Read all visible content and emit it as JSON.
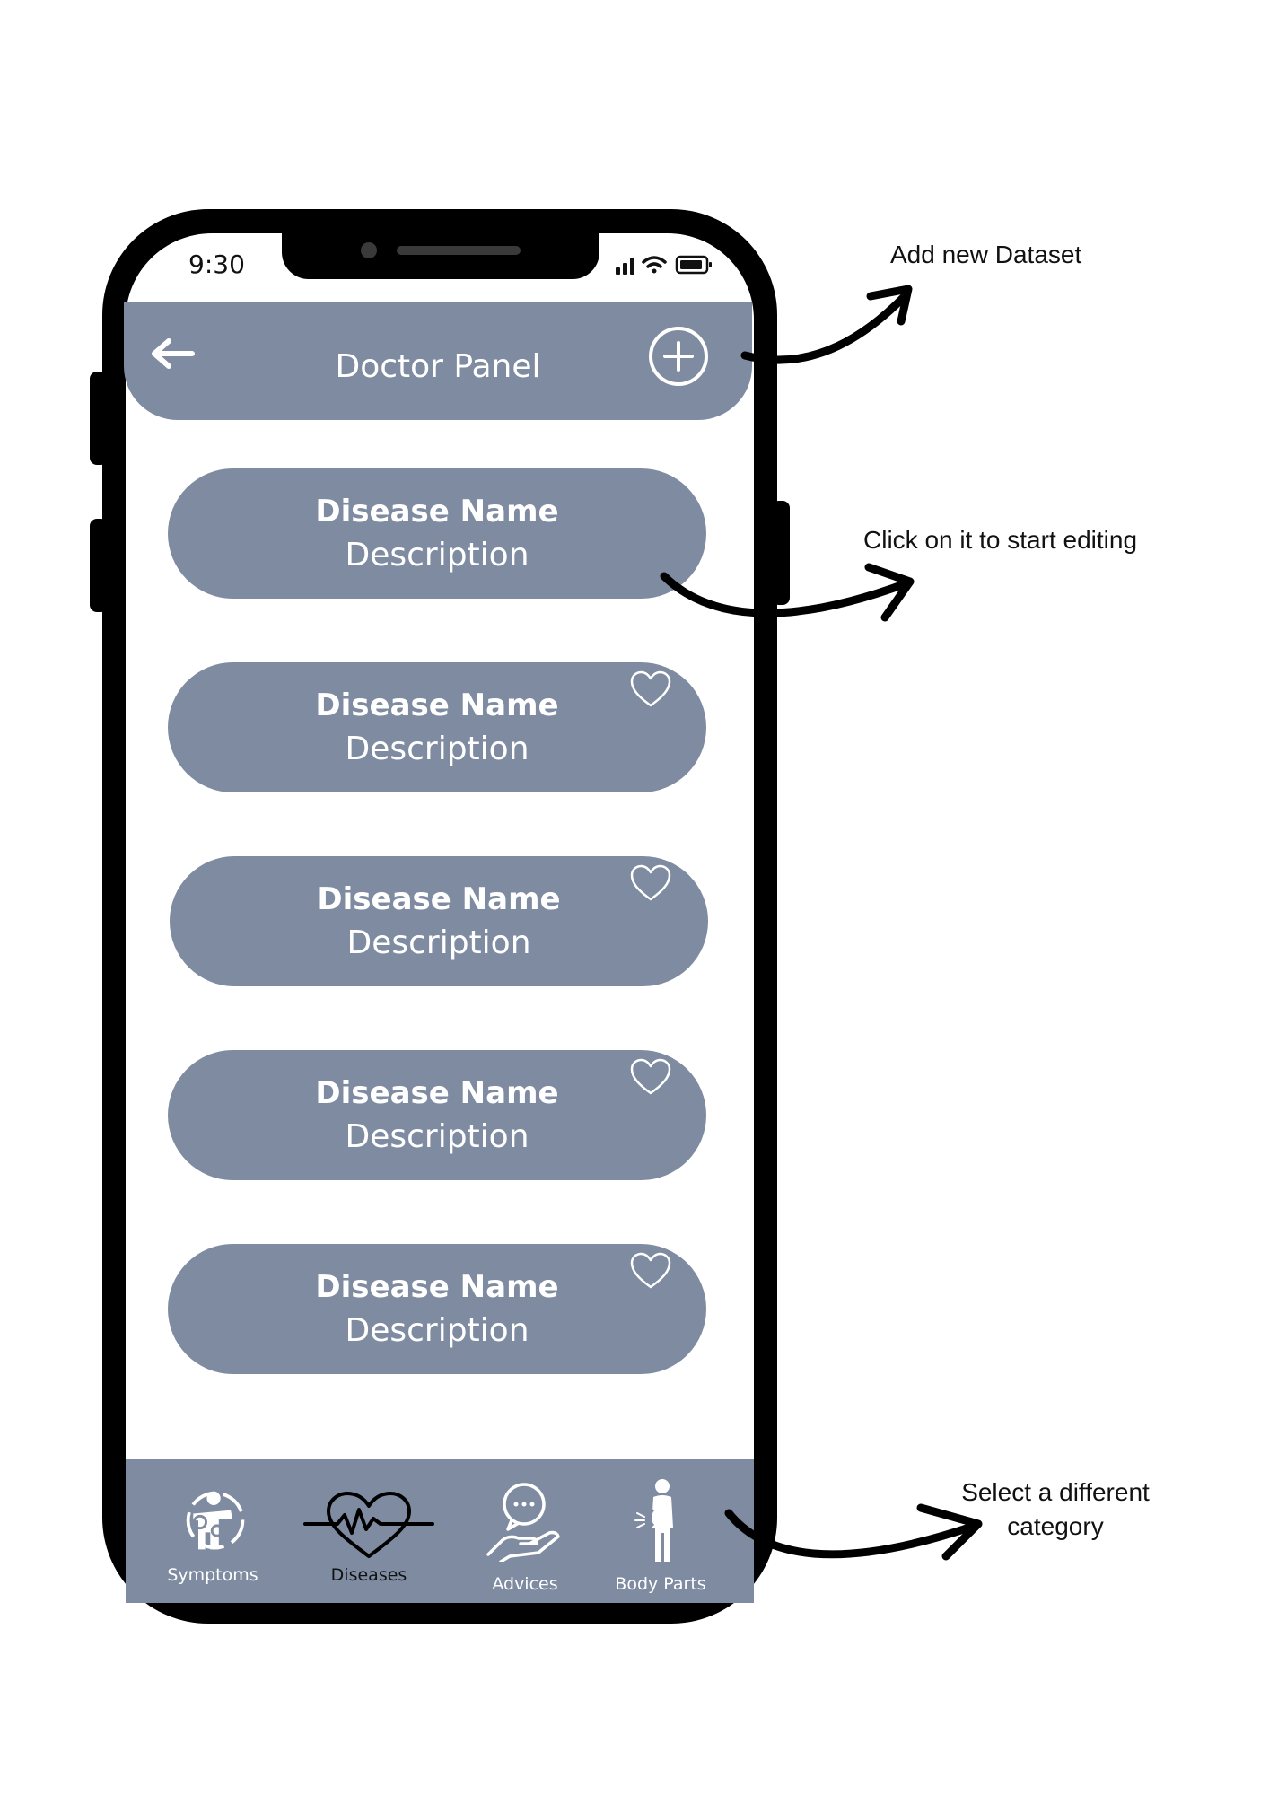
{
  "status_bar": {
    "time": "9:30"
  },
  "header": {
    "title": "Doctor Panel"
  },
  "cards": [
    {
      "name": "Disease Name",
      "description": "Description",
      "favorite_icon": false
    },
    {
      "name": "Disease Name",
      "description": "Description",
      "favorite_icon": true
    },
    {
      "name": "Disease Name",
      "description": "Description",
      "favorite_icon": true
    },
    {
      "name": "Disease Name",
      "description": "Description",
      "favorite_icon": true
    },
    {
      "name": "Disease Name",
      "description": "Description",
      "favorite_icon": true
    }
  ],
  "nav": {
    "items": [
      {
        "label": "Symptoms",
        "icon": "symptoms-icon"
      },
      {
        "label": "Diseases",
        "icon": "heartbeat-icon",
        "active": true
      },
      {
        "label": "Advices",
        "icon": "advice-hand-icon"
      },
      {
        "label": "Body Parts",
        "icon": "body-parts-icon"
      }
    ]
  },
  "annotations": {
    "add_dataset": "Add new Dataset",
    "edit": "Click on it to start editing",
    "category_line1": "Select a different",
    "category_line2": "category"
  },
  "colors": {
    "panel": "#7e8ba1",
    "frame": "#000000",
    "text_light": "#ffffff"
  }
}
